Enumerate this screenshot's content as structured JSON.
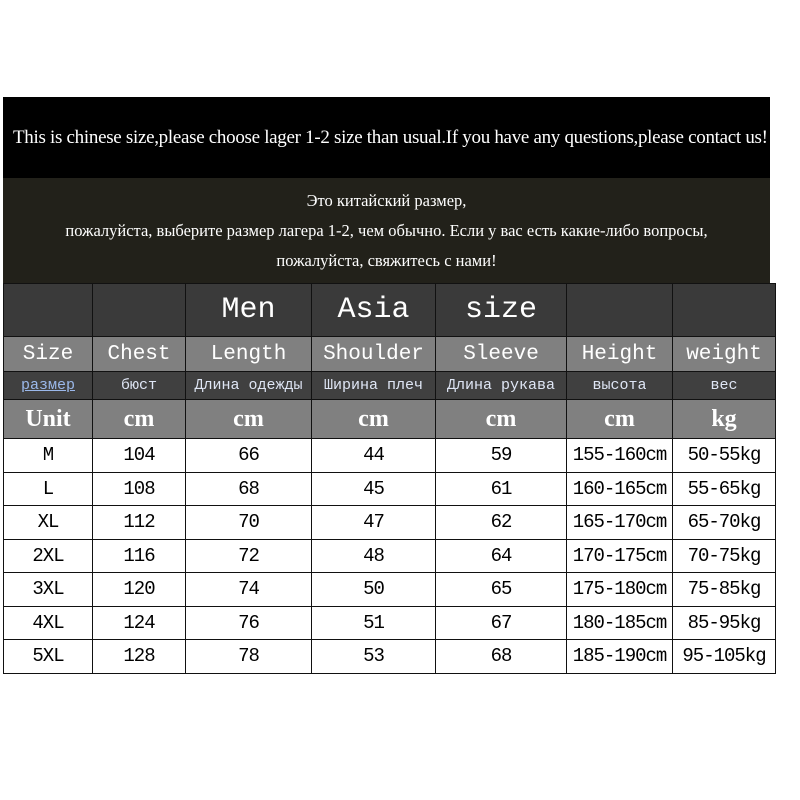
{
  "notice_en": "This is  chinese size,please choose lager 1-2 size than usual.If you have any questions,please contact us!",
  "notice_ru": [
    "Это китайский размер,",
    "пожалуйста, выберите размер лагера 1-2, чем обычно. Если у вас есть какие-либо вопросы,",
    "пожалуйста, свяжитесь с нами!"
  ],
  "title_row": [
    "",
    "",
    "Men",
    "Asia",
    "size",
    "",
    ""
  ],
  "headers_en": [
    "Size",
    "Chest",
    "Length",
    "Shoulder",
    "Sleeve",
    "Height",
    "weight"
  ],
  "headers_ru": [
    "размер",
    "бюст",
    "Длина одежды",
    "Ширина плеч",
    "Длина рукава",
    "высота",
    "вес"
  ],
  "units": [
    "Unit",
    "cm",
    "cm",
    "cm",
    "cm",
    "cm",
    "kg"
  ],
  "rows": [
    [
      "M",
      "104",
      "66",
      "44",
      "59",
      "155-160cm",
      "50-55kg"
    ],
    [
      "L",
      "108",
      "68",
      "45",
      "61",
      "160-165cm",
      "55-65kg"
    ],
    [
      "XL",
      "112",
      "70",
      "47",
      "62",
      "165-170cm",
      "65-70kg"
    ],
    [
      "2XL",
      "116",
      "72",
      "48",
      "64",
      "170-175cm",
      "70-75kg"
    ],
    [
      "3XL",
      "120",
      "74",
      "50",
      "65",
      "175-180cm",
      "75-85kg"
    ],
    [
      "4XL",
      "124",
      "76",
      "51",
      "67",
      "180-185cm",
      "85-95kg"
    ],
    [
      "5XL",
      "128",
      "78",
      "53",
      "68",
      "185-190cm",
      "95-105kg"
    ]
  ]
}
